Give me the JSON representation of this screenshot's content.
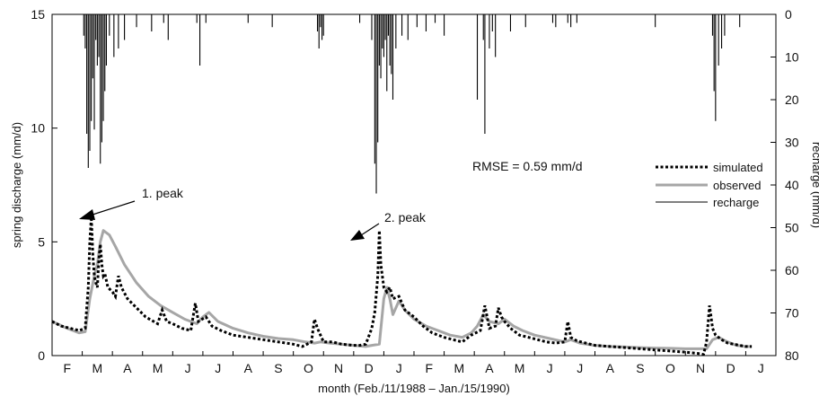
{
  "chart_data": {
    "type": "line",
    "xlabel": "month (Feb./11/1988 – Jan./15/1990)",
    "ylabel_left": "spring discharge (mm/d)",
    "ylabel_right": "recharge (mm/d)",
    "ylim_left": [
      0,
      15
    ],
    "ylim_right": [
      80,
      0
    ],
    "x_unit": "months (0 = start of Feb. 1988)",
    "xlim": [
      0,
      24
    ],
    "x_tick_labels": [
      "F",
      "M",
      "A",
      "M",
      "J",
      "J",
      "A",
      "S",
      "O",
      "N",
      "D",
      "J",
      "F",
      "M",
      "A",
      "M",
      "J",
      "J",
      "A",
      "S",
      "O",
      "N",
      "D",
      "J"
    ],
    "y_ticks_left": [
      0,
      5,
      10,
      15
    ],
    "y_ticks_right": [
      0,
      10,
      20,
      30,
      40,
      50,
      60,
      70,
      80
    ],
    "grid": false,
    "legend_position": "right-middle",
    "annotations": {
      "rmse": "RMSE = 0.59 mm/d",
      "peak1": "1. peak",
      "peak2": "2. peak"
    },
    "series": [
      {
        "name": "simulated",
        "style": "dotted",
        "color": "#000000",
        "x": [
          0.0,
          0.3,
          0.6,
          0.9,
          1.1,
          1.2,
          1.25,
          1.3,
          1.35,
          1.4,
          1.45,
          1.5,
          1.55,
          1.6,
          1.65,
          1.7,
          1.75,
          1.85,
          2.0,
          2.1,
          2.2,
          2.3,
          2.5,
          2.8,
          3.1,
          3.5,
          3.65,
          3.8,
          4.0,
          4.3,
          4.6,
          4.75,
          4.85,
          5.1,
          5.3,
          5.6,
          6.0,
          6.5,
          7.0,
          7.5,
          8.0,
          8.3,
          8.6,
          8.7,
          8.8,
          8.9,
          9.0,
          9.3,
          9.6,
          10.0,
          10.2,
          10.4,
          10.6,
          10.7,
          10.8,
          10.85,
          10.9,
          11.0,
          11.1,
          11.2,
          11.3,
          11.5,
          11.7,
          12.0,
          12.3,
          12.6,
          12.8,
          13.0,
          13.3,
          13.6,
          13.9,
          14.2,
          14.35,
          14.5,
          14.7,
          14.8,
          14.9,
          15.0,
          15.2,
          15.5,
          15.8,
          16.1,
          16.4,
          16.7,
          17.0,
          17.1,
          17.2,
          17.4,
          17.7,
          18.0,
          18.5,
          19.0,
          19.5,
          20.0,
          20.5,
          21.0,
          21.4,
          21.6,
          21.7,
          21.8,
          21.9,
          22.0,
          22.2,
          22.4,
          22.6,
          22.8,
          23.0,
          23.2
        ],
        "values": [
          1.5,
          1.3,
          1.2,
          1.1,
          1.2,
          3.0,
          5.0,
          6.1,
          4.5,
          3.5,
          3.2,
          3.0,
          4.2,
          4.9,
          4.0,
          3.5,
          3.6,
          3.0,
          2.8,
          2.6,
          3.5,
          3.0,
          2.5,
          2.1,
          1.7,
          1.4,
          2.0,
          1.5,
          1.4,
          1.2,
          1.1,
          2.3,
          1.5,
          1.7,
          1.3,
          1.1,
          0.9,
          0.8,
          0.7,
          0.6,
          0.5,
          0.4,
          0.6,
          1.6,
          1.2,
          0.9,
          0.6,
          0.6,
          0.5,
          0.45,
          0.45,
          0.5,
          1.2,
          1.9,
          3.5,
          5.5,
          4.0,
          3.0,
          2.8,
          3.0,
          2.5,
          2.6,
          2.0,
          1.7,
          1.3,
          1.0,
          0.9,
          0.8,
          0.7,
          0.6,
          0.9,
          1.1,
          2.2,
          1.2,
          1.3,
          2.1,
          1.7,
          1.5,
          1.2,
          0.9,
          0.8,
          0.7,
          0.6,
          0.55,
          0.6,
          1.5,
          0.8,
          0.65,
          0.55,
          0.45,
          0.4,
          0.35,
          0.3,
          0.25,
          0.2,
          0.15,
          0.1,
          0.05,
          0.6,
          2.2,
          1.2,
          0.9,
          0.7,
          0.55,
          0.5,
          0.45,
          0.4,
          0.4
        ]
      },
      {
        "name": "observed",
        "style": "solid",
        "color": "#a6a6a6",
        "x": [
          0.0,
          0.5,
          0.9,
          1.1,
          1.25,
          1.4,
          1.5,
          1.6,
          1.7,
          1.9,
          2.1,
          2.4,
          2.8,
          3.2,
          3.6,
          4.0,
          4.4,
          4.8,
          5.0,
          5.2,
          5.5,
          6.0,
          6.5,
          7.0,
          7.5,
          8.0,
          8.4,
          8.7,
          8.9,
          9.2,
          9.6,
          10.0,
          10.4,
          10.6,
          10.85,
          11.0,
          11.1,
          11.2,
          11.3,
          11.5,
          11.7,
          12.0,
          12.4,
          12.8,
          13.2,
          13.6,
          13.9,
          14.1,
          14.3,
          14.5,
          14.8,
          15.0,
          15.3,
          15.6,
          16.0,
          16.5,
          17.0,
          17.2,
          17.5,
          18.0,
          18.5,
          19.0,
          19.5,
          20.0,
          20.5,
          21.0,
          21.5,
          21.7,
          21.9,
          22.1,
          22.4,
          22.7,
          23.0,
          23.2
        ],
        "values": [
          1.5,
          1.2,
          1.0,
          1.05,
          2.5,
          3.5,
          4.0,
          5.0,
          5.5,
          5.3,
          4.8,
          4.0,
          3.2,
          2.6,
          2.2,
          1.9,
          1.6,
          1.4,
          1.7,
          1.9,
          1.5,
          1.2,
          1.0,
          0.85,
          0.75,
          0.7,
          0.6,
          0.55,
          0.6,
          0.55,
          0.5,
          0.45,
          0.4,
          0.45,
          0.5,
          2.5,
          3.0,
          2.5,
          1.8,
          2.4,
          2.0,
          1.6,
          1.3,
          1.1,
          0.9,
          0.8,
          1.0,
          1.3,
          1.8,
          1.5,
          1.4,
          1.6,
          1.3,
          1.1,
          0.9,
          0.75,
          0.6,
          0.7,
          0.55,
          0.45,
          0.4,
          0.38,
          0.35,
          0.33,
          0.32,
          0.3,
          0.3,
          0.3,
          0.7,
          0.8,
          0.6,
          0.45,
          0.4,
          0.4
        ]
      },
      {
        "name": "recharge",
        "style": "bars-from-top",
        "color": "#000000",
        "x": [
          1.05,
          1.1,
          1.15,
          1.2,
          1.25,
          1.3,
          1.35,
          1.4,
          1.45,
          1.5,
          1.55,
          1.6,
          1.65,
          1.7,
          1.75,
          1.8,
          1.9,
          2.05,
          2.2,
          2.4,
          2.8,
          3.3,
          3.7,
          3.85,
          4.8,
          4.9,
          5.1,
          6.5,
          7.3,
          8.8,
          8.85,
          8.9,
          8.95,
          9.0,
          10.2,
          10.6,
          10.7,
          10.75,
          10.8,
          10.85,
          10.9,
          10.95,
          11.0,
          11.05,
          11.1,
          11.15,
          11.2,
          11.25,
          11.3,
          11.4,
          11.6,
          11.8,
          12.1,
          12.4,
          12.7,
          13.0,
          14.1,
          14.3,
          14.35,
          14.5,
          14.6,
          14.7,
          15.2,
          15.7,
          16.6,
          16.7,
          17.1,
          17.2,
          17.4,
          20.0,
          21.9,
          21.95,
          22.0,
          22.1,
          22.2,
          22.3,
          22.8
        ],
        "values": [
          5,
          8,
          28,
          36,
          32,
          25,
          15,
          27,
          6,
          12,
          10,
          35,
          30,
          25,
          18,
          12,
          5,
          10,
          8,
          6,
          3,
          4,
          2,
          6,
          2,
          12,
          2,
          2,
          3,
          4,
          8,
          3,
          6,
          5,
          2,
          6,
          35,
          42,
          30,
          12,
          15,
          8,
          10,
          6,
          18,
          5,
          12,
          14,
          20,
          8,
          5,
          6,
          3,
          4,
          2,
          5,
          20,
          6,
          28,
          8,
          4,
          10,
          4,
          3,
          2,
          3,
          2,
          3,
          2,
          3,
          5,
          18,
          25,
          12,
          8,
          5,
          3
        ]
      }
    ]
  }
}
